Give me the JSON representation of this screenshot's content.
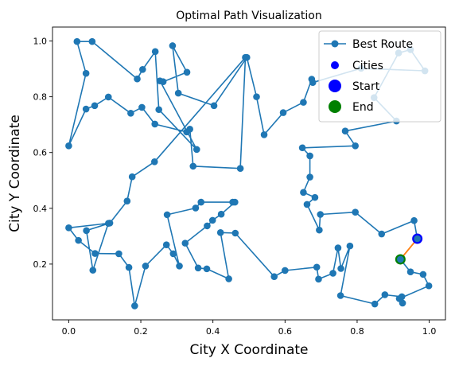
{
  "chart_data": {
    "type": "line",
    "title": "Optimal Path Visualization",
    "xlabel": "City X Coordinate",
    "ylabel": "City Y Coordinate",
    "xlim": [
      -0.045,
      1.045
    ],
    "ylim": [
      0.0,
      1.05
    ],
    "xticks": [
      0.0,
      0.2,
      0.4,
      0.6,
      0.8,
      1.0
    ],
    "xtick_labels": [
      "0.0",
      "0.2",
      "0.4",
      "0.6",
      "0.8",
      "1.0"
    ],
    "yticks": [
      0.2,
      0.4,
      0.6,
      0.8,
      1.0
    ],
    "ytick_labels": [
      "0.2",
      "0.4",
      "0.6",
      "0.8",
      "1.0"
    ],
    "grid": false,
    "legend_position": "top-right",
    "series": [
      {
        "name": "Best Route",
        "color": "#1f77b4",
        "marker": "circle",
        "points": [
          [
            0.967,
            0.291
          ],
          [
            0.958,
            0.356
          ],
          [
            0.868,
            0.308
          ],
          [
            0.795,
            0.386
          ],
          [
            0.698,
            0.378
          ],
          [
            0.695,
            0.322
          ],
          [
            0.661,
            0.414
          ],
          [
            0.683,
            0.439
          ],
          [
            0.651,
            0.457
          ],
          [
            0.669,
            0.512
          ],
          [
            0.669,
            0.588
          ],
          [
            0.648,
            0.617
          ],
          [
            0.795,
            0.624
          ],
          [
            0.767,
            0.677
          ],
          [
            0.909,
            0.713
          ],
          [
            0.847,
            0.797
          ],
          [
            0.915,
            0.957
          ],
          [
            0.948,
            0.969
          ],
          [
            0.988,
            0.893
          ],
          [
            0.811,
            0.902
          ],
          [
            0.677,
            0.851
          ],
          [
            0.674,
            0.863
          ],
          [
            0.651,
            0.78
          ],
          [
            0.595,
            0.743
          ],
          [
            0.542,
            0.664
          ],
          [
            0.521,
            0.8
          ],
          [
            0.494,
            0.941
          ],
          [
            0.403,
            0.768
          ],
          [
            0.304,
            0.813
          ],
          [
            0.288,
            0.983
          ],
          [
            0.328,
            0.888
          ],
          [
            0.262,
            0.854
          ],
          [
            0.253,
            0.857
          ],
          [
            0.355,
            0.611
          ],
          [
            0.25,
            0.754
          ],
          [
            0.24,
            0.962
          ],
          [
            0.205,
            0.898
          ],
          [
            0.19,
            0.864
          ],
          [
            0.065,
            0.998
          ],
          [
            0.023,
            0.998
          ],
          [
            0.048,
            0.884
          ],
          [
            0.0,
            0.624
          ],
          [
            0.048,
            0.756
          ],
          [
            0.072,
            0.768
          ],
          [
            0.11,
            0.799
          ],
          [
            0.172,
            0.741
          ],
          [
            0.203,
            0.762
          ],
          [
            0.239,
            0.702
          ],
          [
            0.327,
            0.674
          ],
          [
            0.336,
            0.684
          ],
          [
            0.345,
            0.551
          ],
          [
            0.476,
            0.543
          ],
          [
            0.49,
            0.941
          ],
          [
            0.238,
            0.567
          ],
          [
            0.176,
            0.513
          ],
          [
            0.162,
            0.426
          ],
          [
            0.114,
            0.347
          ],
          [
            0.049,
            0.32
          ],
          [
            0.067,
            0.178
          ],
          [
            0.11,
            0.346
          ],
          [
            0.0,
            0.33
          ],
          [
            0.027,
            0.285
          ],
          [
            0.073,
            0.238
          ],
          [
            0.139,
            0.237
          ],
          [
            0.167,
            0.188
          ],
          [
            0.183,
            0.05
          ],
          [
            0.213,
            0.193
          ],
          [
            0.271,
            0.269
          ],
          [
            0.29,
            0.237
          ],
          [
            0.307,
            0.193
          ],
          [
            0.273,
            0.377
          ],
          [
            0.352,
            0.401
          ],
          [
            0.367,
            0.422
          ],
          [
            0.455,
            0.422
          ],
          [
            0.461,
            0.422
          ],
          [
            0.423,
            0.379
          ],
          [
            0.399,
            0.357
          ],
          [
            0.384,
            0.337
          ],
          [
            0.323,
            0.275
          ],
          [
            0.359,
            0.186
          ],
          [
            0.383,
            0.183
          ],
          [
            0.444,
            0.147
          ],
          [
            0.421,
            0.313
          ],
          [
            0.462,
            0.311
          ],
          [
            0.57,
            0.155
          ],
          [
            0.6,
            0.177
          ],
          [
            0.688,
            0.189
          ],
          [
            0.693,
            0.146
          ],
          [
            0.733,
            0.167
          ],
          [
            0.747,
            0.258
          ],
          [
            0.755,
            0.184
          ],
          [
            0.78,
            0.265
          ],
          [
            0.754,
            0.087
          ],
          [
            0.849,
            0.057
          ],
          [
            0.877,
            0.09
          ],
          [
            0.924,
            0.083
          ],
          [
            0.926,
            0.06
          ],
          [
            0.917,
            0.076
          ],
          [
            0.999,
            0.122
          ],
          [
            0.983,
            0.163
          ],
          [
            0.948,
            0.172
          ],
          [
            0.92,
            0.217
          ]
        ]
      },
      {
        "name": "Cities",
        "color": "#0000ff",
        "marker": "circle"
      },
      {
        "name": "Start",
        "color": "#0000ff",
        "marker": "circle",
        "x": 0.967,
        "y": 0.291
      },
      {
        "name": "End",
        "color": "#008000",
        "marker": "circle",
        "x": 0.92,
        "y": 0.217
      },
      {
        "name": "return-segment",
        "color": "#ff7f0e",
        "points": [
          [
            0.92,
            0.217
          ],
          [
            0.967,
            0.291
          ]
        ]
      }
    ]
  }
}
